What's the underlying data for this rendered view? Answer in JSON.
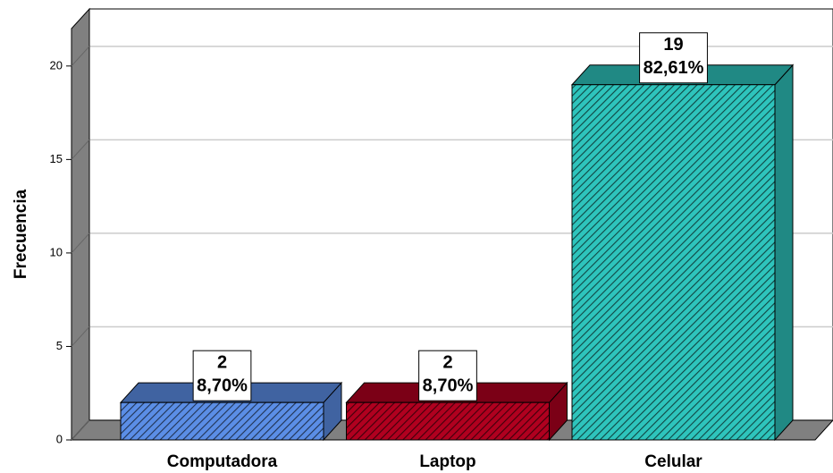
{
  "chart_data": {
    "type": "bar3d",
    "y_label": "Frecuencia",
    "categories": [
      "Computadora",
      "Laptop",
      "Celular"
    ],
    "values": [
      2,
      2,
      19
    ],
    "percent_labels": [
      "8,70%",
      "8,70%",
      "82,61%"
    ],
    "colors": [
      "#5b8ee6",
      "#b0001f",
      "#2ec4bc"
    ],
    "ylim": [
      0,
      22
    ],
    "yticks": [
      0,
      5,
      10,
      15,
      20
    ],
    "grid": true
  }
}
